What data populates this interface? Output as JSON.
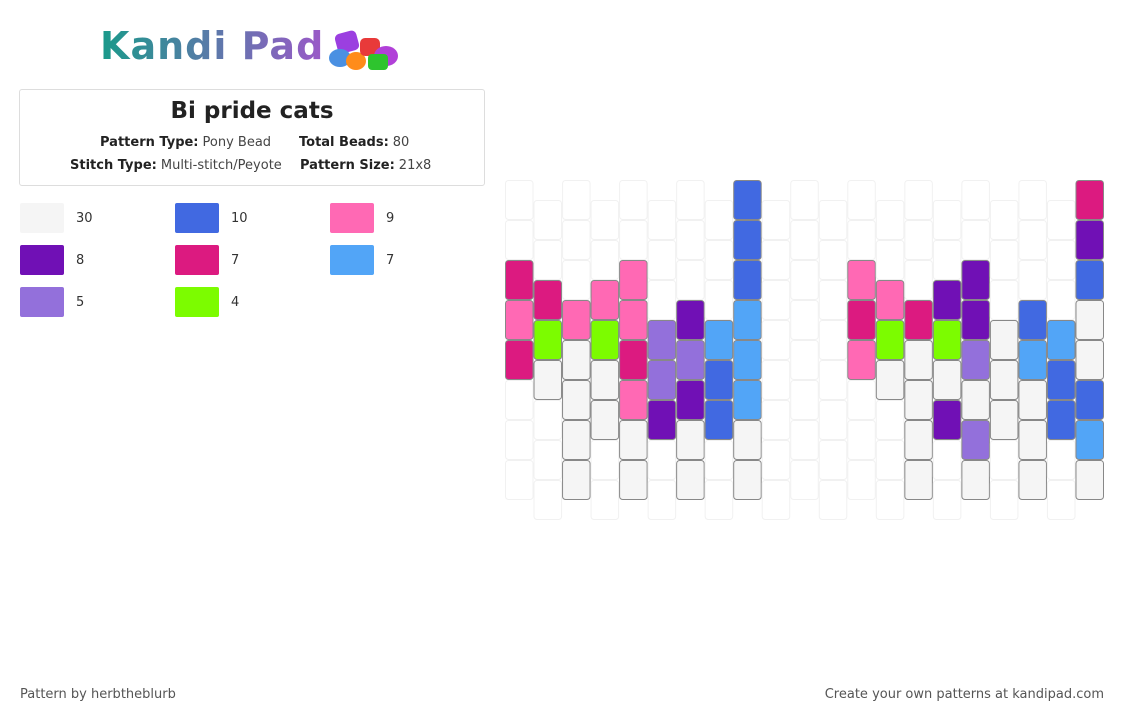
{
  "header": {
    "logo": "Kandi Pad",
    "title": "Bi pride cats"
  },
  "info": [
    {
      "label": "Pattern Type:",
      "value": "Pony Bead"
    },
    {
      "label": "Total Beads:",
      "value": "80"
    },
    {
      "label": "Stitch Type:",
      "value": "Multi-stitch/Peyote"
    },
    {
      "label": "Pattern Size:",
      "value": "21x8"
    }
  ],
  "legend": [
    {
      "color": "#f5f5f5",
      "count": "30"
    },
    {
      "color": "#4169e1",
      "count": "10"
    },
    {
      "color": "#ff69b4",
      "count": "9"
    },
    {
      "color": "#7010b5",
      "count": "8"
    },
    {
      "color": "#dc1a80",
      "count": "7"
    },
    {
      "color": "#52a5f7",
      "count": "7"
    },
    {
      "color": "#9370db",
      "count": "5"
    },
    {
      "color": "#7cfc00",
      "count": "4"
    }
  ],
  "grid": [
    [
      null,
      null,
      "#dc1a80",
      "#ff69b4",
      "#dc1a80",
      null,
      null,
      null
    ],
    [
      null,
      null,
      "#dc1a80",
      "#7cfc00",
      "#f5f5f5",
      null,
      null,
      null
    ],
    [
      null,
      null,
      null,
      "#ff69b4",
      "#f5f5f5",
      "#f5f5f5",
      "#f5f5f5",
      "#f5f5f5"
    ],
    [
      null,
      null,
      "#ff69b4",
      "#7cfc00",
      "#f5f5f5",
      "#f5f5f5",
      null,
      null
    ],
    [
      null,
      null,
      "#ff69b4",
      "#ff69b4",
      "#dc1a80",
      "#ff69b4",
      "#f5f5f5",
      "#f5f5f5"
    ],
    [
      null,
      null,
      null,
      "#9370db",
      "#9370db",
      "#7010b5",
      null,
      null
    ],
    [
      null,
      null,
      null,
      "#7010b5",
      "#9370db",
      "#7010b5",
      "#f5f5f5",
      "#f5f5f5"
    ],
    [
      null,
      null,
      null,
      "#52a5f7",
      "#4169e1",
      "#4169e1",
      null,
      null
    ],
    [
      "#4169e1",
      "#4169e1",
      "#4169e1",
      "#52a5f7",
      "#52a5f7",
      "#52a5f7",
      "#f5f5f5",
      "#f5f5f5"
    ],
    [
      null,
      null,
      null,
      null,
      null,
      null,
      null,
      null
    ],
    [
      null,
      null,
      null,
      null,
      null,
      null,
      null,
      null
    ],
    [
      null,
      null,
      null,
      null,
      null,
      null,
      null,
      null
    ],
    [
      null,
      null,
      "#ff69b4",
      "#dc1a80",
      "#ff69b4",
      null,
      null,
      null
    ],
    [
      null,
      null,
      "#ff69b4",
      "#7cfc00",
      "#f5f5f5",
      null,
      null,
      null
    ],
    [
      null,
      null,
      null,
      "#dc1a80",
      "#f5f5f5",
      "#f5f5f5",
      "#f5f5f5",
      "#f5f5f5"
    ],
    [
      null,
      null,
      "#7010b5",
      "#7cfc00",
      "#f5f5f5",
      "#7010b5",
      null,
      null
    ],
    [
      null,
      null,
      "#7010b5",
      "#7010b5",
      "#9370db",
      "#f5f5f5",
      "#9370db",
      "#f5f5f5"
    ],
    [
      null,
      null,
      null,
      "#f5f5f5",
      "#f5f5f5",
      "#f5f5f5",
      null,
      null
    ],
    [
      null,
      null,
      null,
      "#4169e1",
      "#52a5f7",
      "#f5f5f5",
      "#f5f5f5",
      "#f5f5f5"
    ],
    [
      null,
      null,
      null,
      "#52a5f7",
      "#4169e1",
      "#4169e1",
      null,
      null
    ],
    [
      "#dc1a80",
      "#7010b5",
      "#4169e1",
      "#f5f5f5",
      "#f5f5f5",
      "#4169e1",
      "#52a5f7",
      "#f5f5f5"
    ]
  ],
  "footer": {
    "author": "Pattern by herbtheblurb",
    "promo": "Create your own patterns at kandipad.com"
  }
}
